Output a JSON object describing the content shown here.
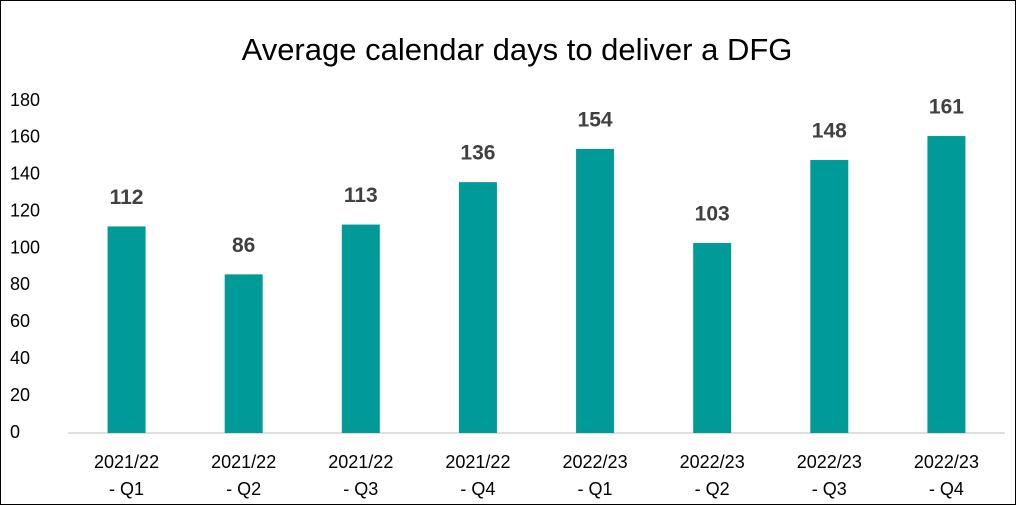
{
  "chart_data": {
    "type": "bar",
    "title": "Average calendar days to deliver a DFG",
    "categories": [
      "2021/22\n- Q1",
      "2021/22\n- Q2",
      "2021/22\n- Q3",
      "2021/22\n- Q4",
      "2022/23\n- Q1",
      "2022/23\n- Q2",
      "2022/23\n- Q3",
      "2022/23\n- Q4"
    ],
    "values": [
      112,
      86,
      113,
      136,
      154,
      103,
      148,
      161
    ],
    "color": "#009b98",
    "ylim": [
      0,
      180
    ],
    "yticks": [
      0,
      20,
      40,
      60,
      80,
      100,
      120,
      140,
      160,
      180
    ],
    "grid": false
  }
}
